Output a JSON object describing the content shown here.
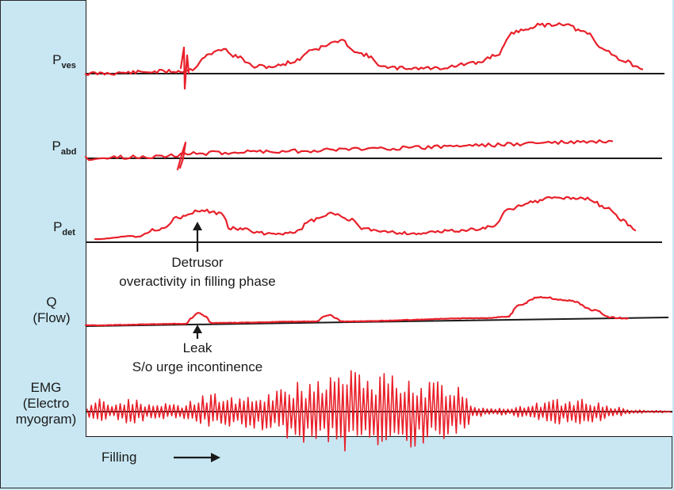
{
  "labels": {
    "pves_main": "P",
    "pves_sub": "ves",
    "pabd_main": "P",
    "pabd_sub": "abd",
    "pdet_main": "P",
    "pdet_sub": "det",
    "flow_line1": "Q",
    "flow_line2": "(Flow)",
    "emg_line1": "EMG",
    "emg_line2": "(Electro",
    "emg_line3": "myogram)"
  },
  "annotations": {
    "detrusor_line1": "Detrusor",
    "detrusor_line2": "overactivity in filling phase",
    "leak_line1": "Leak",
    "leak_line2": "S/o urge incontinence"
  },
  "footer": {
    "filling_label": "Filling"
  },
  "colors": {
    "background": "#c8e7f3",
    "panel": "#ffffff",
    "trace": "#e8202a",
    "baseline": "#1a1a1a"
  }
}
